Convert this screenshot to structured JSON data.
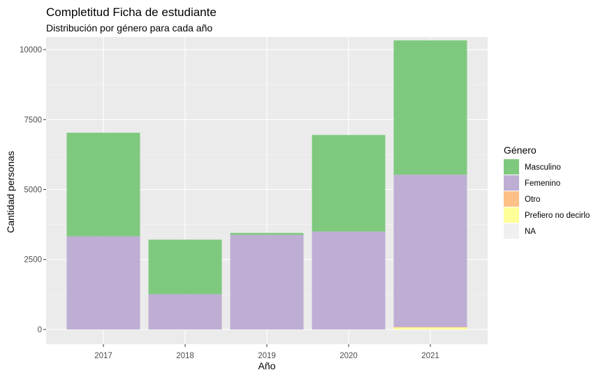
{
  "chart_data": {
    "type": "bar",
    "stacked": true,
    "title": "Completitud Ficha de estudiante",
    "subtitle": "Distribución por género para cada año",
    "xlabel": "Año",
    "ylabel": "Cantidad personas",
    "categories": [
      "2017",
      "2018",
      "2019",
      "2020",
      "2021"
    ],
    "ylim": [
      -525,
      10450
    ],
    "yticks": [
      0,
      2500,
      5000,
      7500,
      10000
    ],
    "ytick_labels": [
      "0",
      "2500",
      "5000",
      "7500",
      "10000"
    ],
    "grid": true,
    "legend_title": "Género",
    "legend_position": "right",
    "series": [
      {
        "name": "Masculino",
        "color": "#7fc97f",
        "values": [
          3700,
          1950,
          70,
          3450,
          4800
        ]
      },
      {
        "name": "Femenino",
        "color": "#beaed4",
        "values": [
          3330,
          1260,
          3380,
          3500,
          5440
        ]
      },
      {
        "name": "Otro",
        "color": "#fdc086",
        "values": [
          0,
          0,
          0,
          0,
          20
        ]
      },
      {
        "name": "Prefiero no decirlo",
        "color": "#ffff99",
        "values": [
          0,
          0,
          0,
          0,
          70
        ]
      },
      {
        "name": "NA",
        "color": "#f0f0f0",
        "values": [
          0,
          0,
          0,
          0,
          0
        ]
      }
    ]
  }
}
